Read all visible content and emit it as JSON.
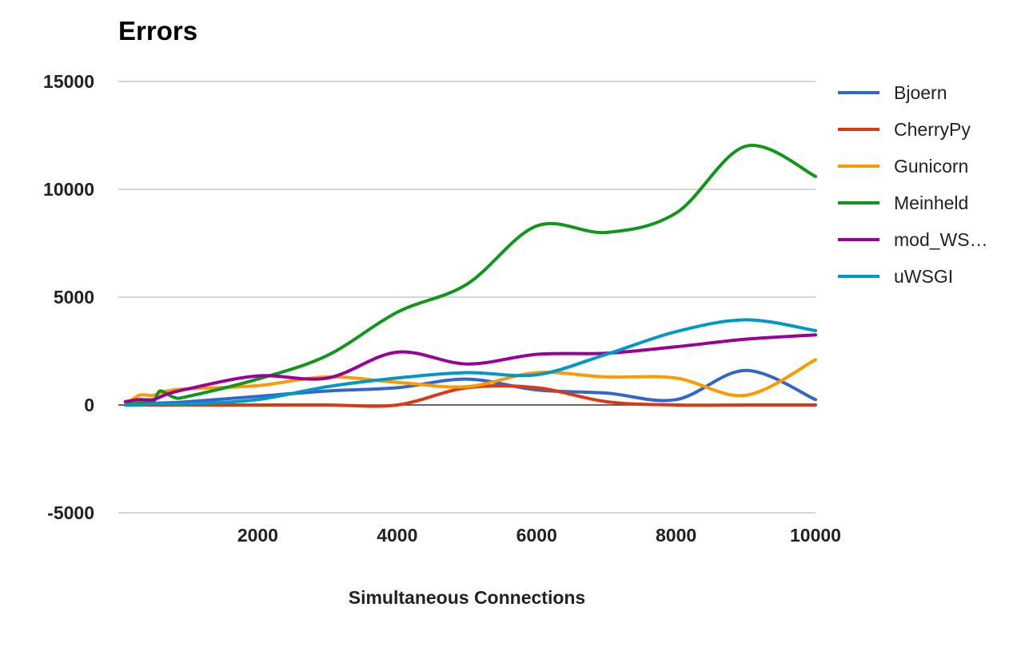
{
  "chart_data": {
    "type": "line",
    "title": "Errors",
    "xlabel": "Simultaneous Connections",
    "ylabel": "",
    "xlim": [
      0,
      10000
    ],
    "ylim": [
      -5000,
      15000
    ],
    "x_ticks": [
      2000,
      4000,
      6000,
      8000,
      10000
    ],
    "y_ticks": [
      -5000,
      0,
      5000,
      10000,
      15000
    ],
    "grid": true,
    "legend_position": "right",
    "series": [
      {
        "name": "Bjoern",
        "color": "#3366cc",
        "x": [
          100,
          300,
          500,
          700,
          1000,
          2000,
          3000,
          4000,
          5000,
          6000,
          7000,
          8000,
          9000,
          10000
        ],
        "y": [
          0,
          50,
          80,
          100,
          150,
          400,
          650,
          800,
          1200,
          700,
          550,
          250,
          1600,
          250
        ]
      },
      {
        "name": "CherryPy",
        "color": "#dc3912",
        "x": [
          100,
          300,
          500,
          700,
          1000,
          2000,
          3000,
          4000,
          5000,
          6000,
          7000,
          8000,
          9000,
          10000
        ],
        "y": [
          0,
          0,
          0,
          0,
          0,
          0,
          0,
          0,
          800,
          800,
          150,
          0,
          0,
          0
        ]
      },
      {
        "name": "Gunicorn",
        "color": "#ff9900",
        "x": [
          100,
          300,
          500,
          700,
          1000,
          2000,
          3000,
          4000,
          5000,
          6000,
          7000,
          8000,
          9000,
          10000
        ],
        "y": [
          0,
          450,
          450,
          650,
          750,
          900,
          1300,
          1050,
          850,
          1500,
          1300,
          1250,
          450,
          2100
        ]
      },
      {
        "name": "Meinheld",
        "color": "#109618",
        "x": [
          100,
          300,
          500,
          600,
          800,
          1000,
          2000,
          3000,
          4000,
          5000,
          6000,
          7000,
          8000,
          9000,
          10000
        ],
        "y": [
          0,
          100,
          150,
          650,
          350,
          400,
          1200,
          2300,
          4300,
          5600,
          8300,
          8000,
          8900,
          12000,
          10600
        ]
      },
      {
        "name": "mod_WS…",
        "color": "#990099",
        "x": [
          100,
          300,
          500,
          700,
          1000,
          2000,
          3000,
          4000,
          5000,
          6000,
          7000,
          8000,
          9000,
          10000
        ],
        "y": [
          150,
          250,
          250,
          500,
          750,
          1350,
          1250,
          2450,
          1900,
          2350,
          2400,
          2700,
          3050,
          3250
        ]
      },
      {
        "name": "uWSGI",
        "color": "#0099c6",
        "x": [
          100,
          300,
          500,
          700,
          1000,
          2000,
          3000,
          4000,
          5000,
          6000,
          7000,
          8000,
          9000,
          10000
        ],
        "y": [
          0,
          0,
          50,
          50,
          50,
          250,
          850,
          1250,
          1500,
          1400,
          2350,
          3400,
          3950,
          3450
        ]
      }
    ]
  }
}
